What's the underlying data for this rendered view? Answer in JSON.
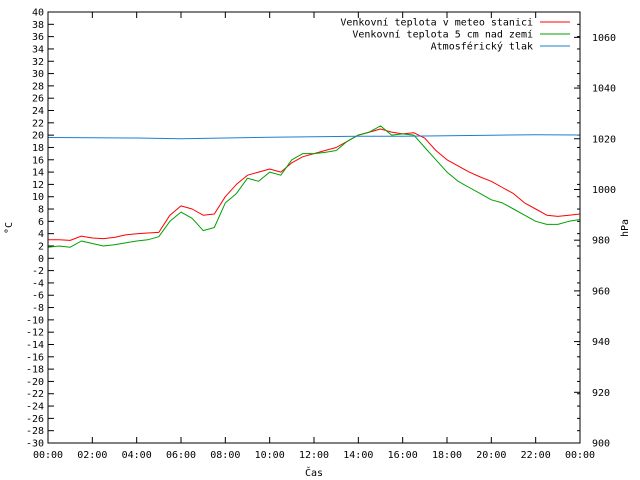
{
  "chart_data": {
    "type": "line",
    "xlabel": "Čas",
    "ylabel_left": "°C",
    "ylabel_right": "hPa",
    "x_ticks": [
      "00:00",
      "02:00",
      "04:00",
      "06:00",
      "08:00",
      "10:00",
      "12:00",
      "14:00",
      "16:00",
      "18:00",
      "20:00",
      "22:00",
      "00:00"
    ],
    "x_range_hours": [
      0,
      24
    ],
    "y_left_range": [
      -30,
      40
    ],
    "y_left_step": 2,
    "y_right_range": [
      900,
      1070
    ],
    "y_right_ticks": [
      900,
      920,
      940,
      960,
      980,
      1000,
      1020,
      1040,
      1060
    ],
    "grid": false,
    "legend_position": "top-right",
    "series": [
      {
        "name": "Venkovní teplota v meteo stanici",
        "color": "#ff0000",
        "axis": "left",
        "points": [
          [
            0,
            3.0
          ],
          [
            0.5,
            3.0
          ],
          [
            1,
            2.9
          ],
          [
            1.5,
            3.6
          ],
          [
            2,
            3.3
          ],
          [
            2.5,
            3.2
          ],
          [
            3,
            3.4
          ],
          [
            3.5,
            3.8
          ],
          [
            4,
            4.0
          ],
          [
            4.5,
            4.1
          ],
          [
            5,
            4.2
          ],
          [
            5.5,
            7.0
          ],
          [
            6,
            8.5
          ],
          [
            6.5,
            8.0
          ],
          [
            7,
            7.0
          ],
          [
            7.5,
            7.2
          ],
          [
            8,
            10.0
          ],
          [
            8.5,
            12.0
          ],
          [
            9,
            13.5
          ],
          [
            9.5,
            14.0
          ],
          [
            10,
            14.5
          ],
          [
            10.5,
            14.0
          ],
          [
            11,
            15.5
          ],
          [
            11.5,
            16.5
          ],
          [
            12,
            17.0
          ],
          [
            12.5,
            17.5
          ],
          [
            13,
            18.0
          ],
          [
            13.5,
            19.0
          ],
          [
            14,
            20.0
          ],
          [
            14.5,
            20.5
          ],
          [
            15,
            21.0
          ],
          [
            15.5,
            20.5
          ],
          [
            16,
            20.2
          ],
          [
            16.5,
            20.4
          ],
          [
            17,
            19.5
          ],
          [
            17.5,
            17.5
          ],
          [
            18,
            16.0
          ],
          [
            18.5,
            15.0
          ],
          [
            19,
            14.0
          ],
          [
            19.5,
            13.2
          ],
          [
            20,
            12.5
          ],
          [
            20.5,
            11.5
          ],
          [
            21,
            10.5
          ],
          [
            21.5,
            9.0
          ],
          [
            22,
            8.0
          ],
          [
            22.5,
            7.0
          ],
          [
            23,
            6.8
          ],
          [
            23.5,
            7.0
          ],
          [
            24,
            7.2
          ]
        ]
      },
      {
        "name": "Venkovní teplota 5 cm nad zemí",
        "color": "#00a000",
        "axis": "left",
        "points": [
          [
            0,
            1.8
          ],
          [
            0.5,
            2.0
          ],
          [
            1,
            1.8
          ],
          [
            1.5,
            2.8
          ],
          [
            2,
            2.4
          ],
          [
            2.5,
            2.0
          ],
          [
            3,
            2.2
          ],
          [
            3.5,
            2.5
          ],
          [
            4,
            2.8
          ],
          [
            4.5,
            3.0
          ],
          [
            5,
            3.5
          ],
          [
            5.5,
            6.0
          ],
          [
            6,
            7.5
          ],
          [
            6.5,
            6.5
          ],
          [
            7,
            4.5
          ],
          [
            7.5,
            5.0
          ],
          [
            8,
            9.0
          ],
          [
            8.5,
            10.5
          ],
          [
            9,
            13.0
          ],
          [
            9.5,
            12.5
          ],
          [
            10,
            14.0
          ],
          [
            10.5,
            13.5
          ],
          [
            11,
            16.0
          ],
          [
            11.5,
            17.0
          ],
          [
            12,
            17.0
          ],
          [
            12.5,
            17.2
          ],
          [
            13,
            17.5
          ],
          [
            13.5,
            19.0
          ],
          [
            14,
            20.0
          ],
          [
            14.5,
            20.5
          ],
          [
            15,
            21.5
          ],
          [
            15.5,
            20.0
          ],
          [
            16,
            20.2
          ],
          [
            16.5,
            20.0
          ],
          [
            17,
            18.0
          ],
          [
            17.5,
            16.0
          ],
          [
            18,
            14.0
          ],
          [
            18.5,
            12.5
          ],
          [
            19,
            11.5
          ],
          [
            19.5,
            10.5
          ],
          [
            20,
            9.5
          ],
          [
            20.5,
            9.0
          ],
          [
            21,
            8.0
          ],
          [
            21.5,
            7.0
          ],
          [
            22,
            6.0
          ],
          [
            22.5,
            5.5
          ],
          [
            23,
            5.5
          ],
          [
            23.5,
            6.0
          ],
          [
            24,
            6.3
          ]
        ]
      },
      {
        "name": "Atmosférický tlak",
        "color": "#1f7ed0",
        "axis": "right",
        "points": [
          [
            0,
            1020.5
          ],
          [
            2,
            1020.4
          ],
          [
            4,
            1020.3
          ],
          [
            6,
            1020.0
          ],
          [
            8,
            1020.3
          ],
          [
            10,
            1020.6
          ],
          [
            12,
            1020.8
          ],
          [
            14,
            1021.0
          ],
          [
            16,
            1021.0
          ],
          [
            18,
            1021.2
          ],
          [
            20,
            1021.4
          ],
          [
            22,
            1021.6
          ],
          [
            24,
            1021.5
          ]
        ]
      }
    ]
  }
}
